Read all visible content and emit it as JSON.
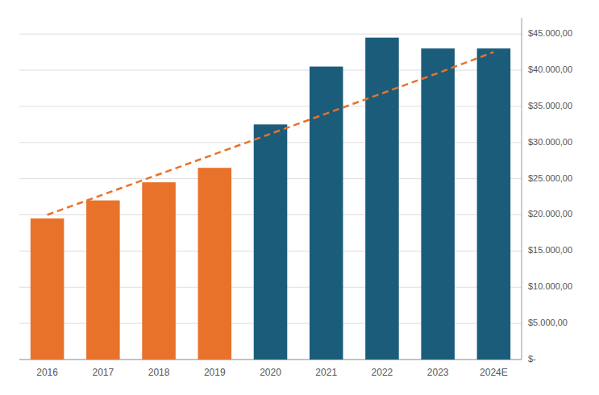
{
  "chart_data": {
    "type": "bar",
    "categories": [
      "2016",
      "2017",
      "2018",
      "2019",
      "2020",
      "2021",
      "2022",
      "2023",
      "2024E"
    ],
    "series": [
      {
        "type": "bar",
        "colors": [
          "#E8722A",
          "#E8722A",
          "#E8722A",
          "#E8722A",
          "#1B5C7A",
          "#1B5C7A",
          "#1B5C7A",
          "#1B5C7A",
          "#1B5C7A"
        ],
        "values": [
          19500,
          22000,
          24500,
          26500,
          32500,
          40500,
          44500,
          43000,
          43000
        ]
      },
      {
        "type": "line",
        "color": "#E8722A",
        "line_style": "dashed",
        "values": [
          20000,
          22800,
          25600,
          28400,
          31200,
          34000,
          36800,
          39600,
          42500
        ]
      }
    ],
    "ylim": [
      0,
      47250
    ],
    "yticks": [
      {
        "value": 0,
        "label": "$-"
      },
      {
        "value": 5000,
        "label": "$5.000,00"
      },
      {
        "value": 10000,
        "label": "$10.000,00"
      },
      {
        "value": 15000,
        "label": "$15.000,00"
      },
      {
        "value": 20000,
        "label": "$20.000,00"
      },
      {
        "value": 25000,
        "label": "$25.000,00"
      },
      {
        "value": 30000,
        "label": "$30.000,00"
      },
      {
        "value": 35000,
        "label": "$35.000,00"
      },
      {
        "value": 40000,
        "label": "$40.000,00"
      },
      {
        "value": 45000,
        "label": "$45.000,00"
      }
    ],
    "grid": true
  }
}
